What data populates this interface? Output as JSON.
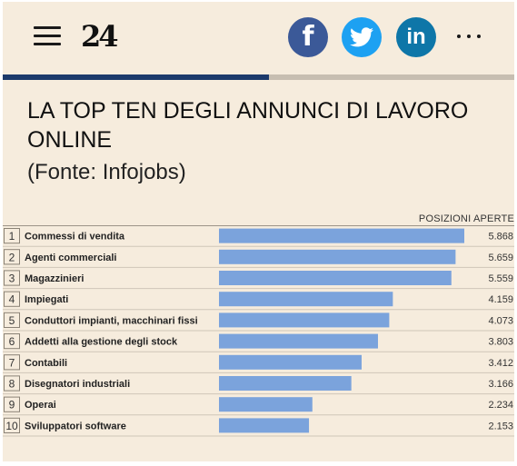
{
  "header": {
    "logo": "24",
    "menu_icon": "hamburger-menu-icon",
    "share": [
      {
        "name": "facebook-icon",
        "glyph": "f",
        "color": "#3b5998"
      },
      {
        "name": "twitter-icon",
        "glyph": "🐦",
        "color": "#1da1f2"
      },
      {
        "name": "linkedin-icon",
        "glyph": "in",
        "color": "#0e76a8"
      }
    ],
    "more_icon": "more-dots-icon"
  },
  "reading_progress": 0.52,
  "article": {
    "title": "LA TOP TEN DEGLI ANNUNCI DI LAVORO ONLINE",
    "source": "(Fonte: Infojobs)"
  },
  "chart_data": {
    "type": "bar",
    "orientation": "horizontal",
    "value_header": "POSIZIONI APERTE",
    "bar_color": "#7ba3dc",
    "ranks": [
      "1",
      "2",
      "3",
      "4",
      "5",
      "6",
      "7",
      "8",
      "9",
      "10"
    ],
    "categories": [
      "Commessi di vendita",
      "Agenti commerciali",
      "Magazzinieri",
      "Impiegati",
      "Conduttori impianti, macchinari fissi",
      "Addetti alla gestione degli stock",
      "Contabili",
      "Disegnatori industriali",
      "Operai",
      "Sviluppatori software"
    ],
    "values": [
      5868,
      5659,
      5559,
      4159,
      4073,
      3803,
      3412,
      3166,
      2234,
      2153
    ],
    "value_labels": [
      "5.868",
      "5.659",
      "5.559",
      "4.159",
      "4.073",
      "3.803",
      "3.412",
      "3.166",
      "2.234",
      "2.153"
    ],
    "xlim": [
      0,
      5868
    ]
  }
}
